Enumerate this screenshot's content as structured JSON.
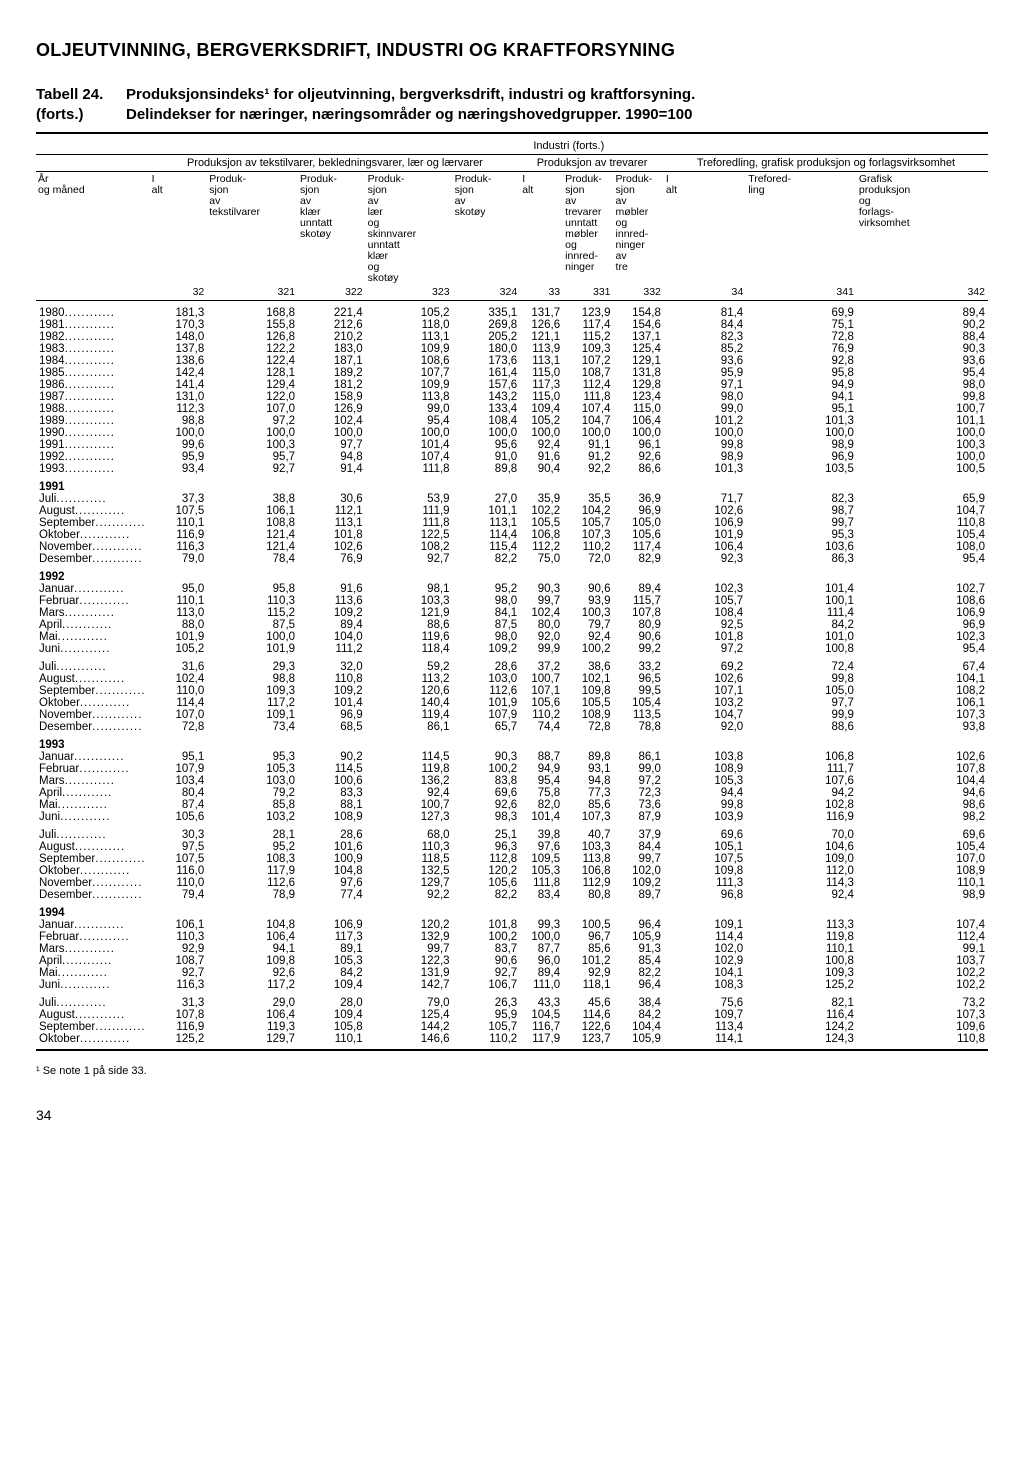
{
  "page_title": "OLJEUTVINNING, BERGVERKSDRIFT, INDUSTRI OG KRAFTFORSYNING",
  "table_label_left1": "Tabell 24.",
  "table_label_left2": "(forts.)",
  "table_title_line1": "Produksjonsindeks¹ for oljeutvinning, bergverksdrift, industri og kraftforsyning.",
  "table_title_line2": "Delindekser for næringer, næringsområder og næringshovedgrupper. 1990=100",
  "super_header": "Industri (forts.)",
  "group_headers": {
    "g1": "Produksjon av tekstilvarer, bekledningsvarer, lær og lærvarer",
    "g2": "Produksjon av trevarer",
    "g3": "Treforedling, grafisk produksjon og forlagsvirksomhet"
  },
  "row_header_label": "År og måned",
  "col_headers": [
    "I alt",
    "Produk- sjon av tekstilvarer",
    "Produk- sjon av klær unntatt skotøy",
    "Produk- sjon av lær og skinnvarer unntatt klær og skotøy",
    "Produk- sjon av skotøy",
    "I alt",
    "Produk- sjon av trevarer unntatt møbler og innred- ninger",
    "Produk- sjon av møbler og innred- ninger av tre",
    "I alt",
    "Trefored- ling",
    "Grafisk produksjon og forlags- virksomhet"
  ],
  "col_numbers": [
    "32",
    "321",
    "322",
    "323",
    "324",
    "33",
    "331",
    "332",
    "34",
    "341",
    "342"
  ],
  "sections": [
    {
      "rows": [
        {
          "label": "1980",
          "v": [
            "181,3",
            "168,8",
            "221,4",
            "105,2",
            "335,1",
            "131,7",
            "123,9",
            "154,8",
            "81,4",
            "69,9",
            "89,4"
          ]
        },
        {
          "label": "1981",
          "v": [
            "170,3",
            "155,8",
            "212,6",
            "118,0",
            "269,8",
            "126,6",
            "117,4",
            "154,6",
            "84,4",
            "75,1",
            "90,2"
          ]
        },
        {
          "label": "1982",
          "v": [
            "148,0",
            "126,8",
            "210,2",
            "113,1",
            "205,2",
            "121,1",
            "115,2",
            "137,1",
            "82,3",
            "72,8",
            "88,4"
          ]
        },
        {
          "label": "1983",
          "v": [
            "137,8",
            "122,2",
            "183,0",
            "109,9",
            "180,0",
            "113,9",
            "109,3",
            "125,4",
            "85,2",
            "76,9",
            "90,3"
          ]
        },
        {
          "label": "1984",
          "v": [
            "138,6",
            "122,4",
            "187,1",
            "108,6",
            "173,6",
            "113,1",
            "107,2",
            "129,1",
            "93,6",
            "92,8",
            "93,6"
          ]
        },
        {
          "label": "1985",
          "v": [
            "142,4",
            "128,1",
            "189,2",
            "107,7",
            "161,4",
            "115,0",
            "108,7",
            "131,8",
            "95,9",
            "95,8",
            "95,4"
          ]
        },
        {
          "label": "1986",
          "v": [
            "141,4",
            "129,4",
            "181,2",
            "109,9",
            "157,6",
            "117,3",
            "112,4",
            "129,8",
            "97,1",
            "94,9",
            "98,0"
          ]
        },
        {
          "label": "1987",
          "v": [
            "131,0",
            "122,0",
            "158,9",
            "113,8",
            "143,2",
            "115,0",
            "111,8",
            "123,4",
            "98,0",
            "94,1",
            "99,8"
          ]
        },
        {
          "label": "1988",
          "v": [
            "112,3",
            "107,0",
            "126,9",
            "99,0",
            "133,4",
            "109,4",
            "107,4",
            "115,0",
            "99,0",
            "95,1",
            "100,7"
          ]
        },
        {
          "label": "1989",
          "v": [
            "98,8",
            "97,2",
            "102,4",
            "95,4",
            "108,4",
            "105,2",
            "104,7",
            "106,4",
            "101,2",
            "101,3",
            "101,1"
          ]
        },
        {
          "label": "1990",
          "v": [
            "100,0",
            "100,0",
            "100,0",
            "100,0",
            "100,0",
            "100,0",
            "100,0",
            "100,0",
            "100,0",
            "100,0",
            "100,0"
          ]
        },
        {
          "label": "1991",
          "v": [
            "99,6",
            "100,3",
            "97,7",
            "101,4",
            "95,6",
            "92,4",
            "91,1",
            "96,1",
            "99,8",
            "98,9",
            "100,3"
          ]
        },
        {
          "label": "1992",
          "v": [
            "95,9",
            "95,7",
            "94,8",
            "107,4",
            "91,0",
            "91,6",
            "91,2",
            "92,6",
            "98,9",
            "96,9",
            "100,0"
          ]
        },
        {
          "label": "1993",
          "v": [
            "93,4",
            "92,7",
            "91,4",
            "111,8",
            "89,8",
            "90,4",
            "92,2",
            "86,6",
            "101,3",
            "103,5",
            "100,5"
          ]
        }
      ]
    },
    {
      "title": "1991",
      "rows": [
        {
          "label": "Juli",
          "v": [
            "37,3",
            "38,8",
            "30,6",
            "53,9",
            "27,0",
            "35,9",
            "35,5",
            "36,9",
            "71,7",
            "82,3",
            "65,9"
          ]
        },
        {
          "label": "August",
          "v": [
            "107,5",
            "106,1",
            "112,1",
            "111,9",
            "101,1",
            "102,2",
            "104,2",
            "96,9",
            "102,6",
            "98,7",
            "104,7"
          ]
        },
        {
          "label": "September",
          "v": [
            "110,1",
            "108,8",
            "113,1",
            "111,8",
            "113,1",
            "105,5",
            "105,7",
            "105,0",
            "106,9",
            "99,7",
            "110,8"
          ]
        },
        {
          "label": "Oktober",
          "v": [
            "116,9",
            "121,4",
            "101,8",
            "122,5",
            "114,4",
            "106,8",
            "107,3",
            "105,6",
            "101,9",
            "95,3",
            "105,4"
          ]
        },
        {
          "label": "November",
          "v": [
            "116,3",
            "121,4",
            "102,6",
            "108,2",
            "115,4",
            "112,2",
            "110,2",
            "117,4",
            "106,4",
            "103,6",
            "108,0"
          ]
        },
        {
          "label": "Desember",
          "v": [
            "79,0",
            "78,4",
            "76,9",
            "92,7",
            "82,2",
            "75,0",
            "72,0",
            "82,9",
            "92,3",
            "86,3",
            "95,4"
          ]
        }
      ]
    },
    {
      "title": "1992",
      "rows": [
        {
          "label": "Januar",
          "v": [
            "95,0",
            "95,8",
            "91,6",
            "98,1",
            "95,2",
            "90,3",
            "90,6",
            "89,4",
            "102,3",
            "101,4",
            "102,7"
          ]
        },
        {
          "label": "Februar",
          "v": [
            "110,1",
            "110,3",
            "113,6",
            "103,3",
            "98,0",
            "99,7",
            "93,9",
            "115,7",
            "105,7",
            "100,1",
            "108,6"
          ]
        },
        {
          "label": "Mars",
          "v": [
            "113,0",
            "115,2",
            "109,2",
            "121,9",
            "84,1",
            "102,4",
            "100,3",
            "107,8",
            "108,4",
            "111,4",
            "106,9"
          ]
        },
        {
          "label": "April",
          "v": [
            "88,0",
            "87,5",
            "89,4",
            "88,6",
            "87,5",
            "80,0",
            "79,7",
            "80,9",
            "92,5",
            "84,2",
            "96,9"
          ]
        },
        {
          "label": "Mai",
          "v": [
            "101,9",
            "100,0",
            "104,0",
            "119,6",
            "98,0",
            "92,0",
            "92,4",
            "90,6",
            "101,8",
            "101,0",
            "102,3"
          ]
        },
        {
          "label": "Juni",
          "v": [
            "105,2",
            "101,9",
            "111,2",
            "118,4",
            "109,2",
            "99,9",
            "100,2",
            "99,2",
            "97,2",
            "100,8",
            "95,4"
          ]
        }
      ]
    },
    {
      "rows": [
        {
          "label": "Juli",
          "v": [
            "31,6",
            "29,3",
            "32,0",
            "59,2",
            "28,6",
            "37,2",
            "38,6",
            "33,2",
            "69,2",
            "72,4",
            "67,4"
          ]
        },
        {
          "label": "August",
          "v": [
            "102,4",
            "98,8",
            "110,8",
            "113,2",
            "103,0",
            "100,7",
            "102,1",
            "96,5",
            "102,6",
            "99,8",
            "104,1"
          ]
        },
        {
          "label": "September",
          "v": [
            "110,0",
            "109,3",
            "109,2",
            "120,6",
            "112,6",
            "107,1",
            "109,8",
            "99,5",
            "107,1",
            "105,0",
            "108,2"
          ]
        },
        {
          "label": "Oktober",
          "v": [
            "114,4",
            "117,2",
            "101,4",
            "140,4",
            "101,9",
            "105,6",
            "105,5",
            "105,4",
            "103,2",
            "97,7",
            "106,1"
          ]
        },
        {
          "label": "November",
          "v": [
            "107,0",
            "109,1",
            "96,9",
            "119,4",
            "107,9",
            "110,2",
            "108,9",
            "113,5",
            "104,7",
            "99,9",
            "107,3"
          ]
        },
        {
          "label": "Desember",
          "v": [
            "72,8",
            "73,4",
            "68,5",
            "86,1",
            "65,7",
            "74,4",
            "72,8",
            "78,8",
            "92,0",
            "88,6",
            "93,8"
          ]
        }
      ]
    },
    {
      "title": "1993",
      "rows": [
        {
          "label": "Januar",
          "v": [
            "95,1",
            "95,3",
            "90,2",
            "114,5",
            "90,3",
            "88,7",
            "89,8",
            "86,1",
            "103,8",
            "106,8",
            "102,6"
          ]
        },
        {
          "label": "Februar",
          "v": [
            "107,9",
            "105,3",
            "114,5",
            "119,8",
            "100,2",
            "94,9",
            "93,1",
            "99,0",
            "108,9",
            "111,7",
            "107,8"
          ]
        },
        {
          "label": "Mars",
          "v": [
            "103,4",
            "103,0",
            "100,6",
            "136,2",
            "83,8",
            "95,4",
            "94,8",
            "97,2",
            "105,3",
            "107,6",
            "104,4"
          ]
        },
        {
          "label": "April",
          "v": [
            "80,4",
            "79,2",
            "83,3",
            "92,4",
            "69,6",
            "75,8",
            "77,3",
            "72,3",
            "94,4",
            "94,2",
            "94,6"
          ]
        },
        {
          "label": "Mai",
          "v": [
            "87,4",
            "85,8",
            "88,1",
            "100,7",
            "92,6",
            "82,0",
            "85,6",
            "73,6",
            "99,8",
            "102,8",
            "98,6"
          ]
        },
        {
          "label": "Juni",
          "v": [
            "105,6",
            "103,2",
            "108,9",
            "127,3",
            "98,3",
            "101,4",
            "107,3",
            "87,9",
            "103,9",
            "116,9",
            "98,2"
          ]
        }
      ]
    },
    {
      "rows": [
        {
          "label": "Juli",
          "v": [
            "30,3",
            "28,1",
            "28,6",
            "68,0",
            "25,1",
            "39,8",
            "40,7",
            "37,9",
            "69,6",
            "70,0",
            "69,6"
          ]
        },
        {
          "label": "August",
          "v": [
            "97,5",
            "95,2",
            "101,6",
            "110,3",
            "96,3",
            "97,6",
            "103,3",
            "84,4",
            "105,1",
            "104,6",
            "105,4"
          ]
        },
        {
          "label": "September",
          "v": [
            "107,5",
            "108,3",
            "100,9",
            "118,5",
            "112,8",
            "109,5",
            "113,8",
            "99,7",
            "107,5",
            "109,0",
            "107,0"
          ]
        },
        {
          "label": "Oktober",
          "v": [
            "116,0",
            "117,9",
            "104,8",
            "132,5",
            "120,2",
            "105,3",
            "106,8",
            "102,0",
            "109,8",
            "112,0",
            "108,9"
          ]
        },
        {
          "label": "November",
          "v": [
            "110,0",
            "112,6",
            "97,6",
            "129,7",
            "105,6",
            "111,8",
            "112,9",
            "109,2",
            "111,3",
            "114,3",
            "110,1"
          ]
        },
        {
          "label": "Desember",
          "v": [
            "79,4",
            "78,9",
            "77,4",
            "92,2",
            "82,2",
            "83,4",
            "80,8",
            "89,7",
            "96,8",
            "92,4",
            "98,9"
          ]
        }
      ]
    },
    {
      "title": "1994",
      "rows": [
        {
          "label": "Januar",
          "v": [
            "106,1",
            "104,8",
            "106,9",
            "120,2",
            "101,8",
            "99,3",
            "100,5",
            "96,4",
            "109,1",
            "113,3",
            "107,4"
          ]
        },
        {
          "label": "Februar",
          "v": [
            "110,3",
            "106,4",
            "117,3",
            "132,9",
            "100,2",
            "100,0",
            "96,7",
            "105,9",
            "114,4",
            "119,8",
            "112,4"
          ]
        },
        {
          "label": "Mars",
          "v": [
            "92,9",
            "94,1",
            "89,1",
            "99,7",
            "83,7",
            "87,7",
            "85,6",
            "91,3",
            "102,0",
            "110,1",
            "99,1"
          ]
        },
        {
          "label": "April",
          "v": [
            "108,7",
            "109,8",
            "105,3",
            "122,3",
            "90,6",
            "96,0",
            "101,2",
            "85,4",
            "102,9",
            "100,8",
            "103,7"
          ]
        },
        {
          "label": "Mai",
          "v": [
            "92,7",
            "92,6",
            "84,2",
            "131,9",
            "92,7",
            "89,4",
            "92,9",
            "82,2",
            "104,1",
            "109,3",
            "102,2"
          ]
        },
        {
          "label": "Juni",
          "v": [
            "116,3",
            "117,2",
            "109,4",
            "142,7",
            "106,7",
            "111,0",
            "118,1",
            "96,4",
            "108,3",
            "125,2",
            "102,2"
          ]
        }
      ]
    },
    {
      "rows": [
        {
          "label": "Juli",
          "v": [
            "31,3",
            "29,0",
            "28,0",
            "79,0",
            "26,3",
            "43,3",
            "45,6",
            "38,4",
            "75,6",
            "82,1",
            "73,2"
          ]
        },
        {
          "label": "August",
          "v": [
            "107,8",
            "106,4",
            "109,4",
            "125,4",
            "95,9",
            "104,5",
            "114,6",
            "84,2",
            "109,7",
            "116,4",
            "107,3"
          ]
        },
        {
          "label": "September",
          "v": [
            "116,9",
            "119,3",
            "105,8",
            "144,2",
            "105,7",
            "116,7",
            "122,6",
            "104,4",
            "113,4",
            "124,2",
            "109,6"
          ]
        },
        {
          "label": "Oktober",
          "v": [
            "125,2",
            "129,7",
            "110,1",
            "146,6",
            "110,2",
            "117,9",
            "123,7",
            "105,9",
            "114,1",
            "124,3",
            "110,8"
          ]
        }
      ]
    }
  ],
  "footnote": "¹ Se note 1 på side 33.",
  "page_number": "34"
}
